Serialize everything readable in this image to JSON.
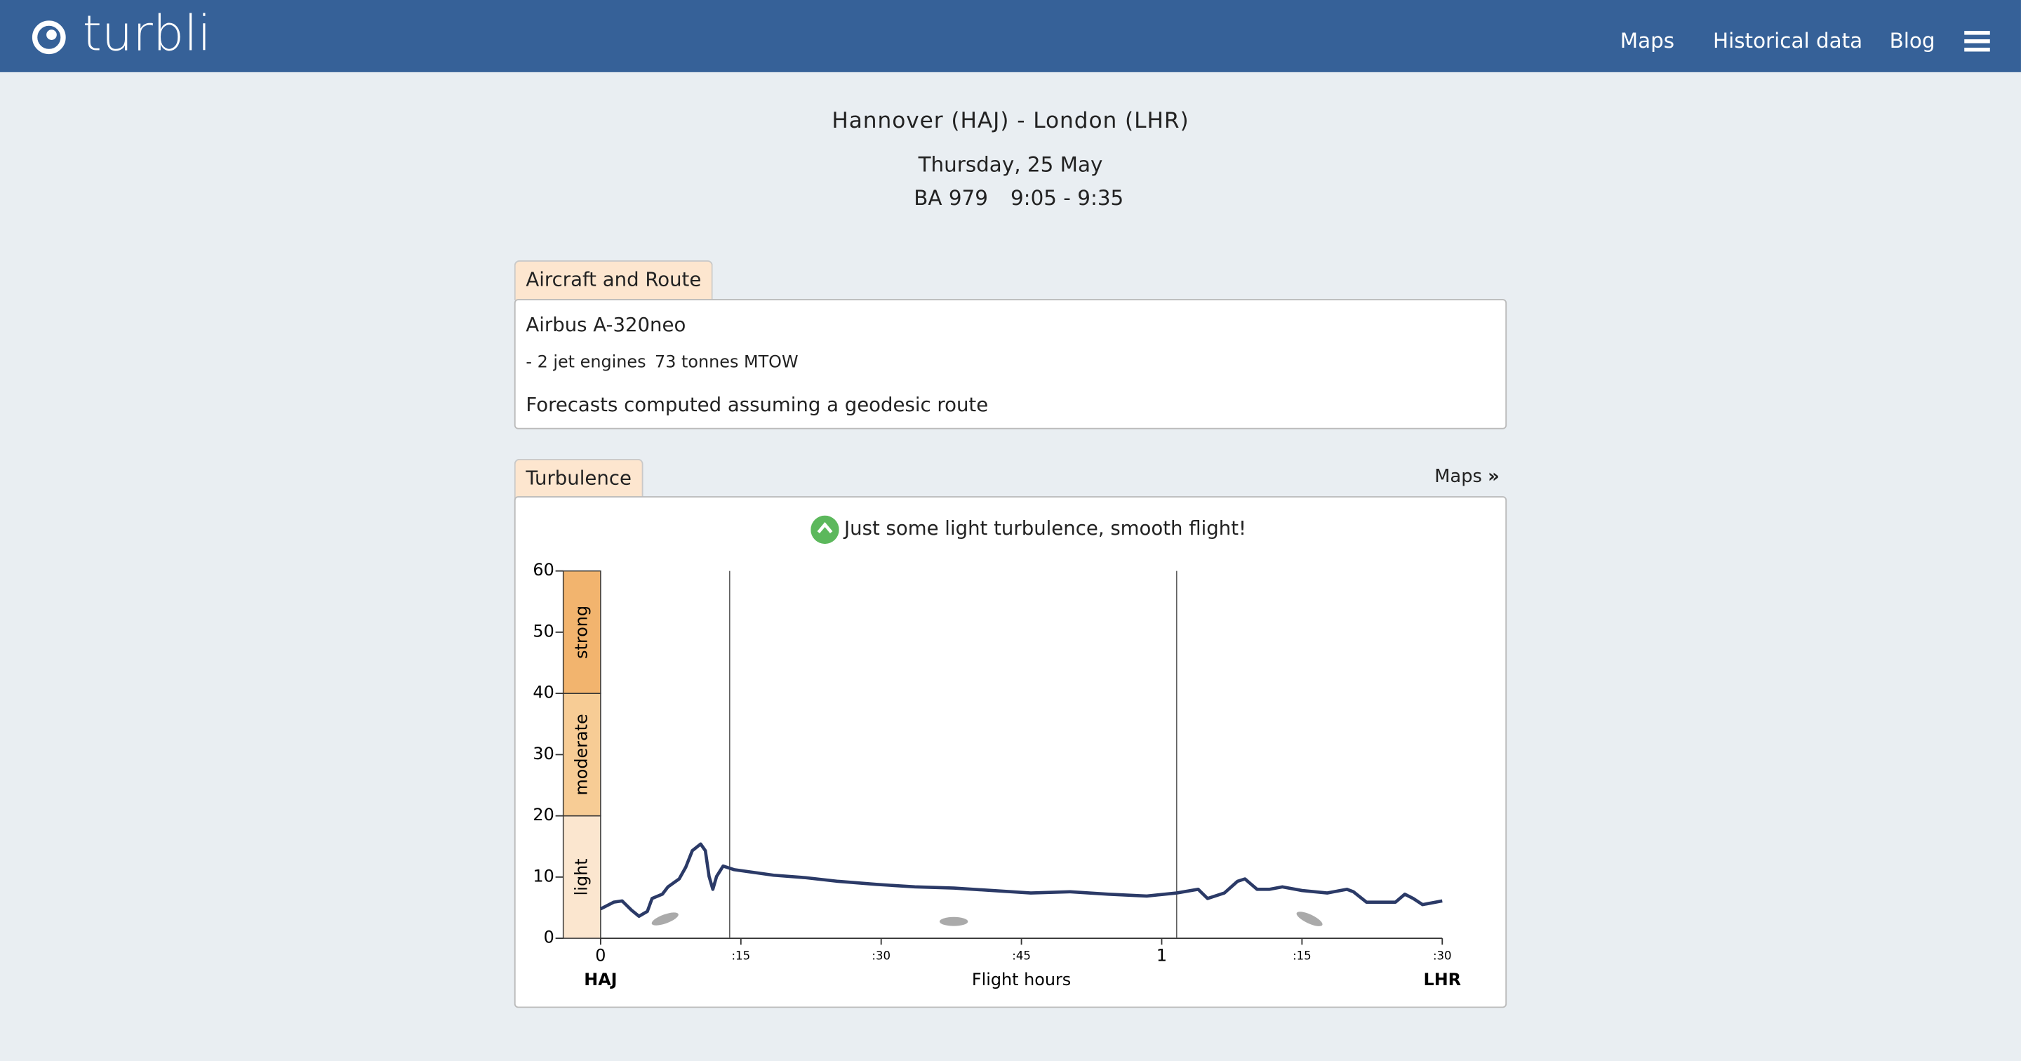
{
  "header": {
    "brand": "turbli",
    "nav": [
      "Maps",
      "Historical data",
      "Blog"
    ]
  },
  "flight": {
    "route": "Hannover (HAJ) - London (LHR)",
    "date": "Thursday, 25 May",
    "number": "BA 979",
    "times": "9:05 - 9:35"
  },
  "aircraft": {
    "tab": "Aircraft and Route",
    "model": "Airbus A-320neo",
    "engines": "- 2 jet engines",
    "mtow": "73 tonnes MTOW",
    "note": "Forecasts computed assuming a geodesic route"
  },
  "turbulence": {
    "tab": "Turbulence",
    "maps_link": "Maps",
    "summary": "Just some light turbulence, smooth flight!"
  },
  "chart_data": {
    "type": "line",
    "xlabel": "Flight hours",
    "origin_label": "HAJ",
    "destination_label": "LHR",
    "xlim": [
      0,
      90
    ],
    "ylim": [
      0,
      60
    ],
    "xticks": [
      0,
      {
        "value": 15,
        "label": ":15"
      },
      {
        "value": 30,
        "label": ":30"
      },
      {
        "value": 45,
        "label": ":45"
      },
      {
        "value": 60,
        "label": "1"
      },
      {
        "value": 75,
        "label": ":15"
      },
      {
        "value": 90,
        "label": ":30"
      }
    ],
    "yticks": [
      0,
      10,
      20,
      30,
      40,
      50,
      60
    ],
    "bands": [
      {
        "name": "light",
        "from": 0,
        "to": 20,
        "color": "#fbe6cf"
      },
      {
        "name": "moderate",
        "from": 20,
        "to": 40,
        "color": "#f7cc95"
      },
      {
        "name": "strong",
        "from": 40,
        "to": 60,
        "color": "#f2b46e"
      }
    ],
    "markers_x": [
      13.8,
      61.6
    ],
    "x": [
      0,
      1.4,
      2.3,
      3.3,
      4.1,
      5.0,
      5.5,
      6.6,
      7.2,
      8.4,
      9.1,
      9.8,
      10.7,
      11.2,
      11.6,
      12.0,
      12.4,
      13.1,
      14.3,
      15.7,
      18.5,
      21.9,
      25.4,
      29.5,
      33.6,
      37.8,
      41.9,
      46.0,
      50.2,
      54.3,
      58.4,
      61.6,
      63.9,
      64.9,
      66.7,
      68.1,
      68.9,
      70.2,
      71.5,
      72.9,
      75.0,
      77.7,
      79.8,
      80.5,
      81.9,
      85.0,
      86.0,
      86.9,
      87.9,
      90
    ],
    "series": [
      {
        "color": "#2b3a67",
        "values": [
          4.8,
          5.9,
          6.1,
          4.6,
          3.6,
          4.4,
          6.5,
          7.2,
          8.4,
          9.7,
          11.6,
          14.3,
          15.4,
          14.3,
          10.1,
          8.0,
          10.1,
          11.8,
          11.2,
          10.9,
          10.3,
          9.9,
          9.3,
          8.8,
          8.4,
          8.2,
          7.8,
          7.4,
          7.6,
          7.2,
          6.9,
          7.4,
          8.0,
          6.5,
          7.4,
          9.3,
          9.7,
          8.0,
          8.0,
          8.4,
          7.8,
          7.4,
          8.0,
          7.6,
          5.9,
          5.9,
          7.2,
          6.5,
          5.5,
          6.1
        ]
      }
    ]
  }
}
